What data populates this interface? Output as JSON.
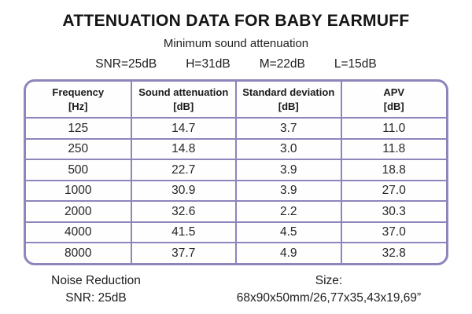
{
  "page": {
    "title": "ATTENUATION DATA FOR BABY EARMUFF",
    "subtitle": "Minimum sound attenuation"
  },
  "summary": {
    "snr": "SNR=25dB",
    "h": "H=31dB",
    "m": "M=22dB",
    "l": "L=15dB"
  },
  "table": {
    "columns": [
      {
        "label": "Frequency",
        "unit": "[Hz]"
      },
      {
        "label": "Sound attenuation",
        "unit": "[dB]"
      },
      {
        "label": "Standard deviation",
        "unit": "[dB]"
      },
      {
        "label": "APV",
        "unit": "[dB]"
      }
    ],
    "rows": [
      [
        "125",
        "14.7",
        "3.7",
        "11.0"
      ],
      [
        "250",
        "14.8",
        "3.0",
        "11.8"
      ],
      [
        "500",
        "22.7",
        "3.9",
        "18.8"
      ],
      [
        "1000",
        "30.9",
        "3.9",
        "27.0"
      ],
      [
        "2000",
        "32.6",
        "2.2",
        "30.3"
      ],
      [
        "4000",
        "41.5",
        "4.5",
        "37.0"
      ],
      [
        "8000",
        "37.7",
        "4.9",
        "32.8"
      ]
    ]
  },
  "footer": {
    "noise_reduction_label": "Noise Reduction",
    "noise_reduction_value": "SNR: 25dB",
    "size_label": "Size:",
    "size_value": "68x90x50mm/26,77x35,43x19,69”"
  },
  "colors": {
    "table_border": "#8d85bb",
    "text": "#1e1e1e",
    "background": "#ffffff"
  },
  "chart_data": {
    "type": "table",
    "title": "ATTENUATION DATA FOR BABY EARMUFF",
    "subtitle": "Minimum sound attenuation",
    "summary": {
      "SNR": "25dB",
      "H": "31dB",
      "M": "22dB",
      "L": "15dB"
    },
    "columns": [
      "Frequency [Hz]",
      "Sound attenuation [dB]",
      "Standard deviation [dB]",
      "APV [dB]"
    ],
    "frequencies_hz": [
      125,
      250,
      500,
      1000,
      2000,
      4000,
      8000
    ],
    "series": [
      {
        "name": "Sound attenuation [dB]",
        "values": [
          14.7,
          14.8,
          22.7,
          30.9,
          32.6,
          41.5,
          37.7
        ]
      },
      {
        "name": "Standard deviation [dB]",
        "values": [
          3.7,
          3.0,
          3.9,
          3.9,
          2.2,
          4.5,
          4.9
        ]
      },
      {
        "name": "APV [dB]",
        "values": [
          11.0,
          11.8,
          18.8,
          27.0,
          30.3,
          37.0,
          32.8
        ]
      }
    ],
    "footnotes": [
      "Noise Reduction SNR: 25dB",
      "Size: 68x90x50mm/26,77x35,43x19,69”"
    ]
  }
}
